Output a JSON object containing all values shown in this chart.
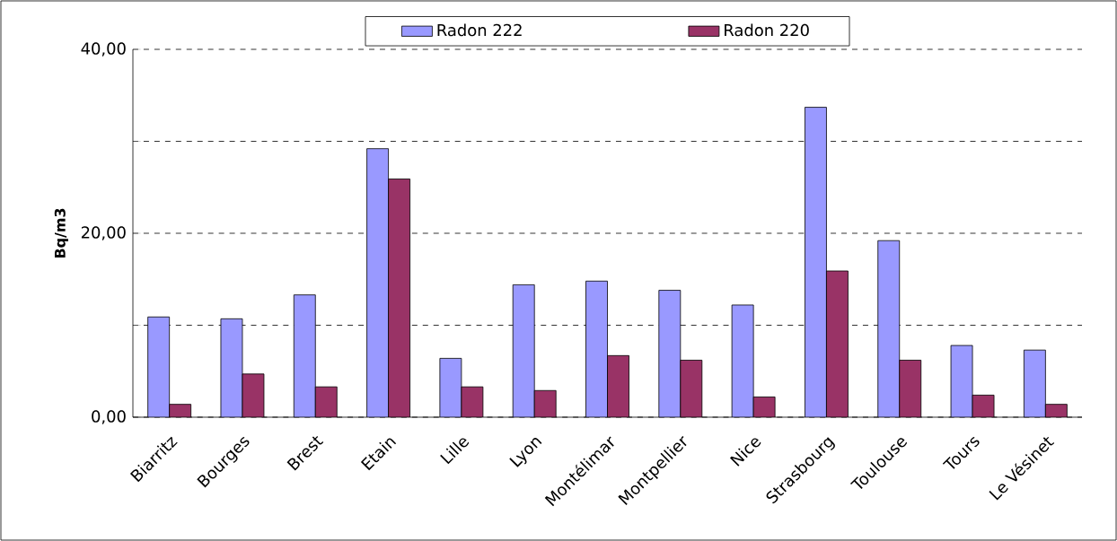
{
  "chart_data": {
    "type": "bar",
    "ylabel": "Bq/m3",
    "categories": [
      "Biarritz",
      "Bourges",
      "Brest",
      "Etain",
      "Lille",
      "Lyon",
      "Montélimar",
      "Montpellier",
      "Nice",
      "Strasbourg",
      "Toulouse",
      "Tours",
      "Le Vésinet"
    ],
    "series": [
      {
        "name": "Radon 222",
        "color": "#9999ff",
        "values": [
          10.9,
          10.7,
          13.3,
          29.2,
          6.4,
          14.4,
          14.8,
          13.8,
          12.2,
          33.7,
          19.2,
          7.8,
          7.3
        ]
      },
      {
        "name": "Radon 220",
        "color": "#993366",
        "values": [
          1.4,
          4.7,
          3.3,
          25.9,
          3.3,
          2.9,
          6.7,
          6.2,
          2.2,
          15.9,
          6.2,
          2.4,
          1.4
        ]
      }
    ],
    "ylim": [
      0,
      40
    ],
    "yticks": [
      {
        "value": 0,
        "label": "0,00"
      },
      {
        "value": 10,
        "label": null
      },
      {
        "value": 20,
        "label": "20,00"
      },
      {
        "value": 30,
        "label": null
      },
      {
        "value": 40,
        "label": "40,00"
      }
    ],
    "grid": "y",
    "legend": "top"
  }
}
